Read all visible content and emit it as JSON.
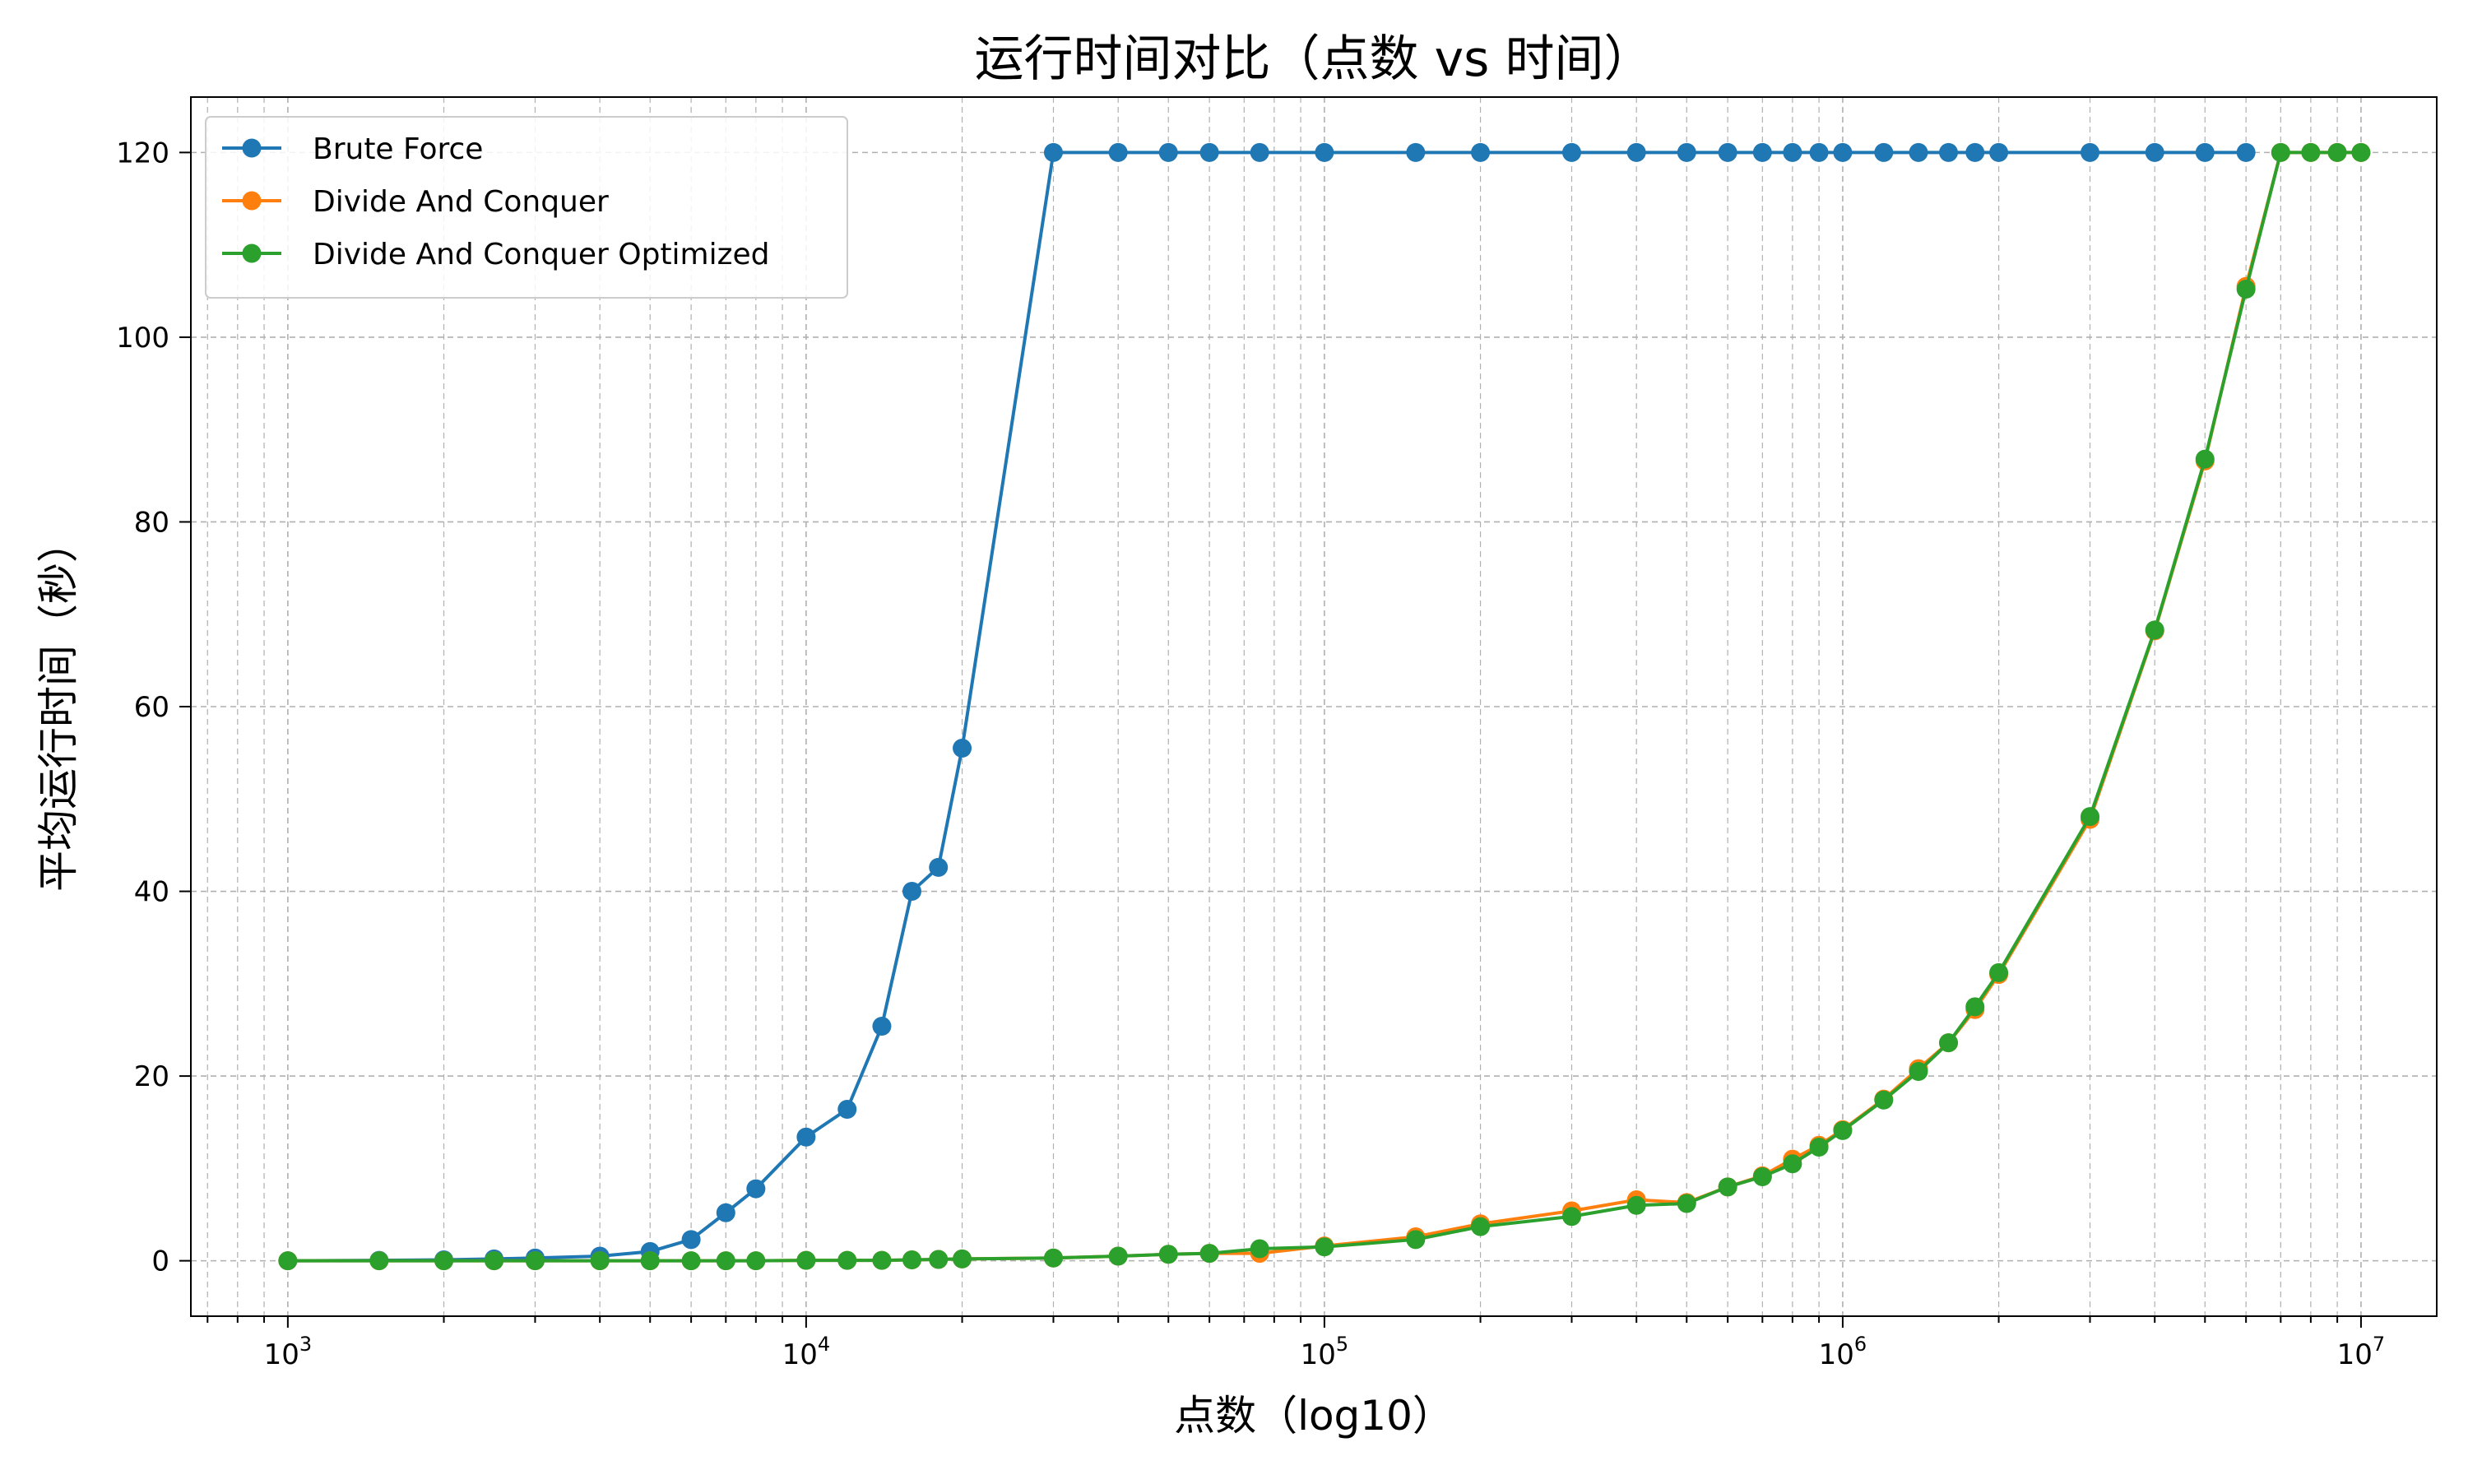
{
  "chart_data": {
    "type": "line",
    "title": "运行时间对比（点数 vs 时间）",
    "xlabel": "点数（log10）",
    "ylabel": "平均运行时间（秒）",
    "xscale": "log",
    "xlim": [
      650,
      14000000
    ],
    "ylim": [
      -6,
      126
    ],
    "x_ticks": [
      1000,
      10000,
      100000,
      1000000,
      10000000
    ],
    "x_tick_labels": [
      {
        "base": "10",
        "exp": "3"
      },
      {
        "base": "10",
        "exp": "4"
      },
      {
        "base": "10",
        "exp": "5"
      },
      {
        "base": "10",
        "exp": "6"
      },
      {
        "base": "10",
        "exp": "7"
      }
    ],
    "y_ticks": [
      0,
      20,
      40,
      60,
      80,
      100,
      120
    ],
    "y_tick_labels": [
      "0",
      "20",
      "40",
      "60",
      "80",
      "100",
      "120"
    ],
    "grid": true,
    "legend_position": "top-left",
    "series": [
      {
        "name": "Brute Force",
        "color": "#1f77b4",
        "marker": "circle",
        "x": [
          1000,
          1500,
          2000,
          2500,
          3000,
          4000,
          5000,
          6000,
          7000,
          8000,
          10000,
          12000,
          14000,
          16000,
          18000,
          20000,
          30000,
          40000,
          50000,
          60000,
          75000,
          100000,
          150000,
          200000,
          300000,
          400000,
          500000,
          600000,
          700000,
          800000,
          900000,
          1000000,
          1200000,
          1400000,
          1600000,
          1800000,
          2000000,
          3000000,
          4000000,
          5000000,
          6000000
        ],
        "y": [
          0,
          0.05,
          0.1,
          0.2,
          0.3,
          0.5,
          1.0,
          2.3,
          5.2,
          7.8,
          13.4,
          16.4,
          25.4,
          40.0,
          42.6,
          55.5,
          120,
          120,
          120,
          120,
          120,
          120,
          120,
          120,
          120,
          120,
          120,
          120,
          120,
          120,
          120,
          120,
          120,
          120,
          120,
          120,
          120,
          120,
          120,
          120,
          120
        ]
      },
      {
        "name": "Divide And Conquer",
        "color": "#ff7f0e",
        "marker": "circle",
        "x": [
          1000,
          1500,
          2000,
          2500,
          3000,
          4000,
          5000,
          6000,
          7000,
          8000,
          10000,
          12000,
          14000,
          16000,
          18000,
          20000,
          30000,
          40000,
          50000,
          60000,
          75000,
          100000,
          150000,
          200000,
          300000,
          400000,
          500000,
          600000,
          700000,
          800000,
          900000,
          1000000,
          1200000,
          1400000,
          1600000,
          1800000,
          2000000,
          3000000,
          4000000,
          5000000,
          6000000,
          7000000,
          8000000,
          9000000,
          10000000
        ],
        "y": [
          0,
          0,
          0,
          0,
          0,
          0,
          0,
          0,
          0,
          0,
          0.05,
          0.05,
          0.05,
          0.1,
          0.15,
          0.2,
          0.3,
          0.5,
          0.7,
          0.8,
          0.8,
          1.6,
          2.6,
          4.0,
          5.4,
          6.6,
          6.3,
          8.0,
          9.2,
          11.0,
          12.5,
          14.2,
          17.5,
          20.8,
          23.6,
          27.2,
          31.0,
          47.8,
          68.2,
          86.6,
          105.5,
          120,
          120,
          120,
          120
        ]
      },
      {
        "name": "Divide And Conquer Optimized",
        "color": "#2ca02c",
        "marker": "circle",
        "x": [
          1000,
          1500,
          2000,
          2500,
          3000,
          4000,
          5000,
          6000,
          7000,
          8000,
          10000,
          12000,
          14000,
          16000,
          18000,
          20000,
          30000,
          40000,
          50000,
          60000,
          75000,
          100000,
          150000,
          200000,
          300000,
          400000,
          500000,
          600000,
          700000,
          800000,
          900000,
          1000000,
          1200000,
          1400000,
          1600000,
          1800000,
          2000000,
          3000000,
          4000000,
          5000000,
          6000000,
          7000000,
          8000000,
          9000000,
          10000000
        ],
        "y": [
          0,
          0,
          0,
          0,
          0,
          0,
          0,
          0,
          0,
          0,
          0.05,
          0.05,
          0.05,
          0.1,
          0.15,
          0.2,
          0.3,
          0.5,
          0.7,
          0.8,
          1.3,
          1.5,
          2.3,
          3.7,
          4.8,
          6.0,
          6.2,
          8.0,
          9.1,
          10.5,
          12.3,
          14.1,
          17.4,
          20.5,
          23.6,
          27.5,
          31.2,
          48.1,
          68.3,
          86.8,
          105.2,
          120,
          120,
          120,
          120
        ]
      }
    ]
  }
}
